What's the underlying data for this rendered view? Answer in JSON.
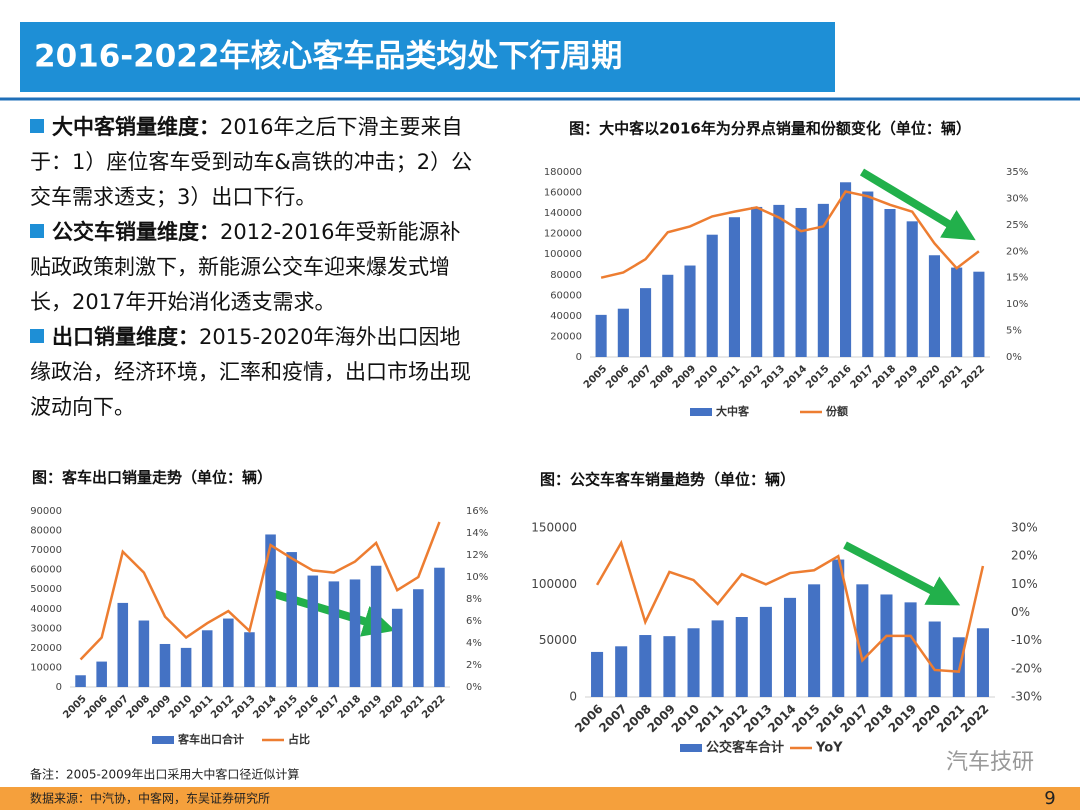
{
  "header": {
    "title": "2016-2022年核心客车品类均处下行周期"
  },
  "bullets": [
    {
      "head": "大中客销量维度：",
      "body": "2016年之后下滑主要来自于：1）座位客车受到动车&高铁的冲击；2）公交车需求透支；3）出口下行。"
    },
    {
      "head": "公交车销量维度：",
      "body": "2012-2016年受新能源补贴政政策刺激下，新能源公交车迎来爆发式增长，2017年开始消化透支需求。"
    },
    {
      "head": "出口销量维度：",
      "body": "2015-2020年海外出口因地缘政治，经济环境，汇率和疫情，出口市场出现波动向下。"
    }
  ],
  "chart_data": [
    {
      "type": "combo",
      "title": "图：大中客以2016年为分界点销量和份额变化（单位：辆）",
      "categories": [
        "2005",
        "2006",
        "2007",
        "2008",
        "2009",
        "2010",
        "2011",
        "2012",
        "2013",
        "2014",
        "2015",
        "2016",
        "2017",
        "2018",
        "2019",
        "2020",
        "2021",
        "2022"
      ],
      "series": [
        {
          "name": "大中客",
          "color": "#4472c4",
          "kind": "bar",
          "values": [
            41000,
            47000,
            67000,
            80000,
            89000,
            119000,
            136000,
            146000,
            148000,
            145000,
            149000,
            170000,
            161000,
            144000,
            132000,
            99000,
            87000,
            83000
          ]
        },
        {
          "name": "份额",
          "color": "#ed7d31",
          "kind": "line",
          "axis": "y2",
          "values": [
            15,
            16,
            18.5,
            23.6,
            24.7,
            26.6,
            27.5,
            28.3,
            26.4,
            23.8,
            24.7,
            31.3,
            30.4,
            28.8,
            27.5,
            21.5,
            16.8,
            20
          ]
        }
      ],
      "ylim": [
        0,
        180000
      ],
      "yticks": [
        0,
        20000,
        40000,
        60000,
        80000,
        100000,
        120000,
        140000,
        160000,
        180000
      ],
      "y2lim": [
        0,
        35
      ],
      "y2ticks": [
        {
          "value": 0,
          "label": "0%"
        },
        {
          "value": 5,
          "label": "5%"
        },
        {
          "value": 10,
          "label": "10%"
        },
        {
          "value": 15,
          "label": "15%"
        },
        {
          "value": 20,
          "label": "20%"
        },
        {
          "value": 25,
          "label": "25%"
        },
        {
          "value": 30,
          "label": "30%"
        },
        {
          "value": 35,
          "label": "35%"
        }
      ]
    },
    {
      "type": "combo",
      "title": "图：客车出口销量走势（单位：辆）",
      "categories": [
        "2005",
        "2006",
        "2007",
        "2008",
        "2009",
        "2010",
        "2011",
        "2012",
        "2013",
        "2014",
        "2015",
        "2016",
        "2017",
        "2018",
        "2019",
        "2020",
        "2021",
        "2022"
      ],
      "series": [
        {
          "name": "客车出口合计",
          "color": "#4472c4",
          "kind": "bar",
          "values": [
            6000,
            13000,
            43000,
            34000,
            22000,
            20000,
            29000,
            35000,
            28000,
            78000,
            69000,
            57000,
            54000,
            55000,
            62000,
            40000,
            50000,
            61000
          ]
        },
        {
          "name": "占比",
          "color": "#ed7d31",
          "kind": "line",
          "axis": "y2",
          "values": [
            2.5,
            4.5,
            12.3,
            10.4,
            6.4,
            4.5,
            5.8,
            6.9,
            5.1,
            12.9,
            11.7,
            10.6,
            10.4,
            11.4,
            13.1,
            8.8,
            10,
            15
          ]
        }
      ],
      "ylim": [
        0,
        90000
      ],
      "yticks": [
        0,
        10000,
        20000,
        30000,
        40000,
        50000,
        60000,
        70000,
        80000,
        90000
      ],
      "y2lim": [
        0,
        16
      ],
      "y2ticks": [
        {
          "value": 0,
          "label": "0%"
        },
        {
          "value": 2,
          "label": "2%"
        },
        {
          "value": 4,
          "label": "4%"
        },
        {
          "value": 6,
          "label": "6%"
        },
        {
          "value": 8,
          "label": "8%"
        },
        {
          "value": 10,
          "label": "10%"
        },
        {
          "value": 12,
          "label": "12%"
        },
        {
          "value": 14,
          "label": "14%"
        },
        {
          "value": 16,
          "label": "16%"
        }
      ]
    },
    {
      "type": "combo",
      "title": "图：公交车客车销量趋势（单位：辆）",
      "categories": [
        "2006",
        "2007",
        "2008",
        "2009",
        "2010",
        "2011",
        "2012",
        "2013",
        "2014",
        "2015",
        "2016",
        "2017",
        "2018",
        "2019",
        "2020",
        "2021",
        "2022"
      ],
      "series": [
        {
          "name": "公交客车合计",
          "color": "#4472c4",
          "kind": "bar",
          "values": [
            40000,
            45000,
            55000,
            54000,
            61000,
            68000,
            71000,
            80000,
            88000,
            100000,
            122000,
            100000,
            91000,
            84000,
            67000,
            53000,
            61000
          ]
        },
        {
          "name": "YoY",
          "color": "#ed7d31",
          "kind": "line",
          "axis": "y2",
          "values": [
            9.8,
            24.7,
            -3.4,
            14.4,
            11.5,
            3,
            13.6,
            10,
            14,
            15,
            20,
            -17,
            -8.3,
            -8.3,
            -20.4,
            -21,
            16.5
          ]
        }
      ],
      "ylim": [
        0,
        150000
      ],
      "yticks": [
        0,
        50000,
        100000,
        150000
      ],
      "y2lim": [
        -30,
        30
      ],
      "y2ticks": [
        {
          "value": -30,
          "label": "-30%"
        },
        {
          "value": -20,
          "label": "-20%"
        },
        {
          "value": -10,
          "label": "-10%"
        },
        {
          "value": 0,
          "label": "0%"
        },
        {
          "value": 10,
          "label": "10%"
        },
        {
          "value": 20,
          "label": "20%"
        },
        {
          "value": 30,
          "label": "30%"
        }
      ]
    }
  ],
  "footer": {
    "note": "备注：2005-2009年出口采用大中客口径近似计算",
    "source": "数据来源：中汽协，中客网，东吴证券研究所",
    "page": "9",
    "watermark": "汽车技研"
  }
}
